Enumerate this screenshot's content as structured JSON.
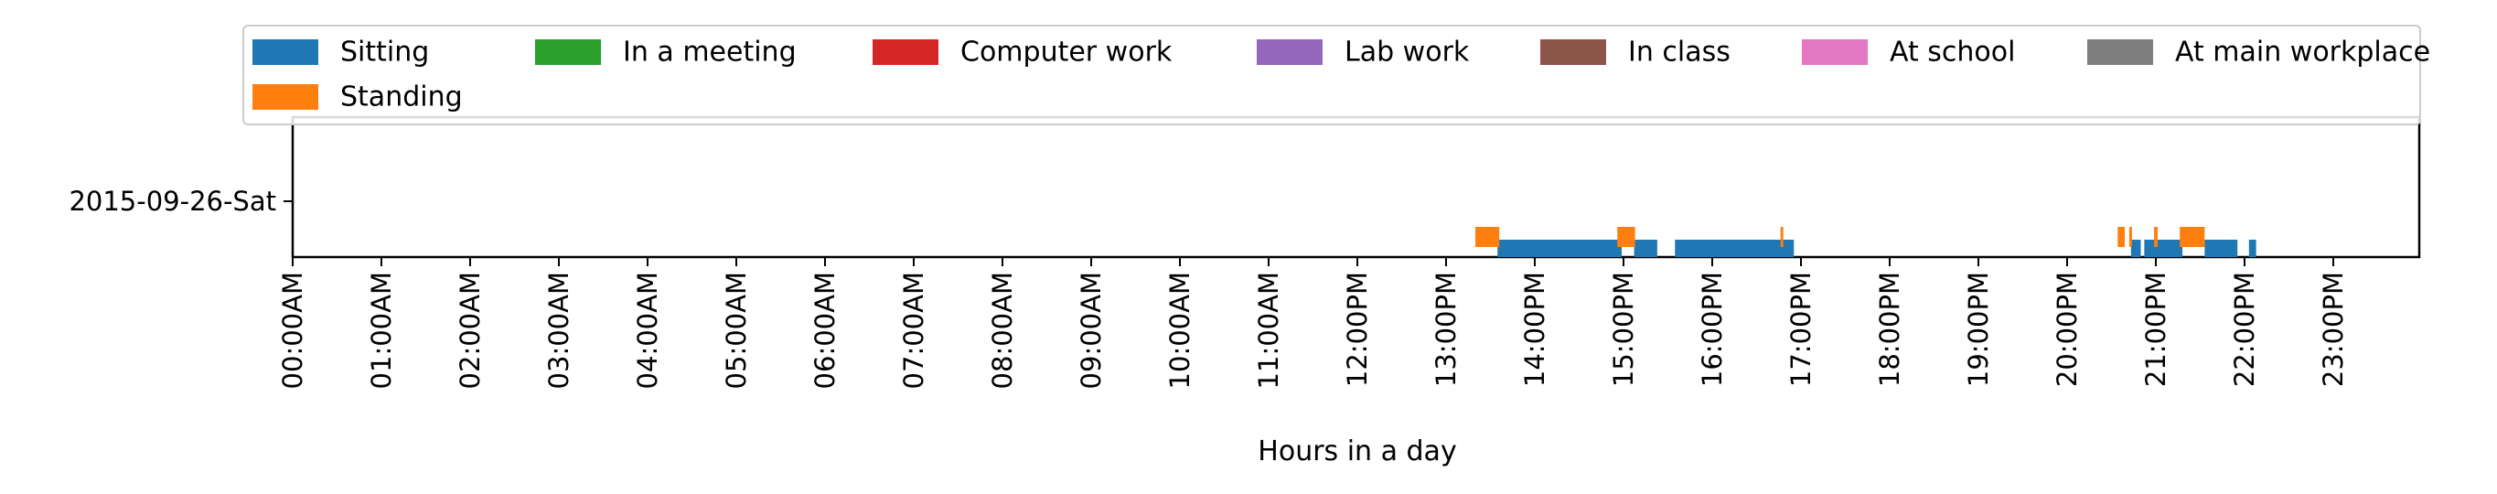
{
  "chart_data": {
    "type": "timeline",
    "xlabel": "Hours in a day",
    "x_tick_labels": [
      "00:00AM",
      "01:00AM",
      "02:00AM",
      "03:00AM",
      "04:00AM",
      "05:00AM",
      "06:00AM",
      "07:00AM",
      "08:00AM",
      "09:00AM",
      "10:00AM",
      "11:00AM",
      "12:00PM",
      "13:00PM",
      "14:00PM",
      "15:00PM",
      "16:00PM",
      "17:00PM",
      "18:00PM",
      "19:00PM",
      "20:00PM",
      "21:00PM",
      "22:00PM",
      "23:00PM"
    ],
    "xlim_hours": [
      0,
      24
    ],
    "y_categories": [
      "2015-09-26-Sat"
    ],
    "legend_position": "top",
    "grid": false,
    "series": [
      {
        "name": "Sitting",
        "color": "#1f77b4",
        "intervals": [
          [
            13.58,
            14.98
          ],
          [
            15.12,
            15.38
          ],
          [
            15.58,
            16.92
          ],
          [
            20.72,
            20.83
          ],
          [
            20.87,
            21.3
          ],
          [
            21.55,
            21.92
          ],
          [
            22.05,
            22.13
          ]
        ]
      },
      {
        "name": "Standing",
        "color": "#ff7f0e",
        "intervals": [
          [
            13.33,
            13.6
          ],
          [
            14.93,
            15.13
          ],
          [
            16.77,
            16.8
          ],
          [
            20.57,
            20.65
          ],
          [
            20.7,
            20.73
          ],
          [
            20.98,
            21.02
          ],
          [
            21.27,
            21.55
          ]
        ]
      },
      {
        "name": "In a meeting",
        "color": "#2ca02c",
        "intervals": []
      },
      {
        "name": "Computer work",
        "color": "#d62728",
        "intervals": []
      },
      {
        "name": "Lab work",
        "color": "#9467bd",
        "intervals": []
      },
      {
        "name": "In class",
        "color": "#8c564b",
        "intervals": []
      },
      {
        "name": "At school",
        "color": "#e377c2",
        "intervals": []
      },
      {
        "name": "At main workplace",
        "color": "#7f7f7f",
        "intervals": []
      }
    ]
  }
}
